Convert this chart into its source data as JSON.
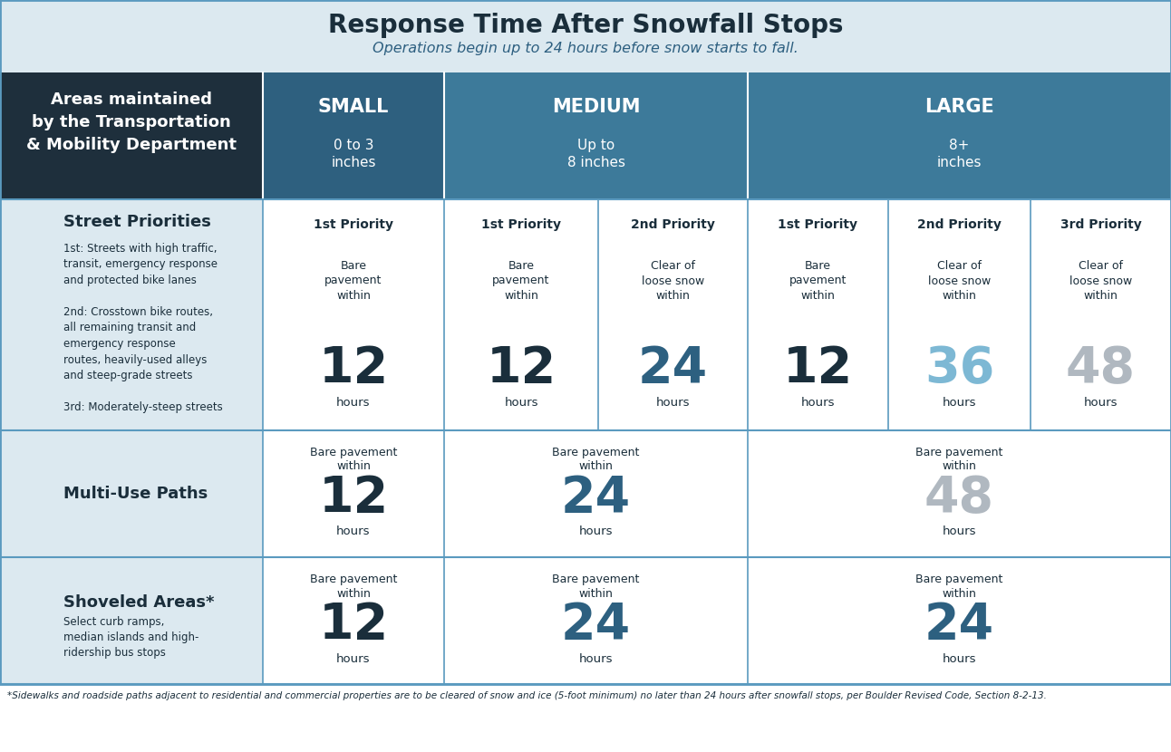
{
  "title": "Response Time After Snowfall Stops",
  "subtitle": "Operations begin up to 24 hours before snow starts to fall.",
  "header_bg_light": "#dce9f0",
  "col0_bg_dark": "#1e2f3c",
  "col0_bg_light": "#dce9f0",
  "teal_small": "#2e607f",
  "teal_medium": "#3d7a9a",
  "teal_large": "#3d7a9a",
  "row_bg_white": "#ffffff",
  "border_color": "#5a9abf",
  "title_color": "#1a2e3b",
  "subtitle_color": "#2d5f80",
  "dark_navy": "#1a2e3b",
  "teal_dark": "#2d6080",
  "light_blue": "#7db8d4",
  "gray_num": "#b0b8c0",
  "hours_color": "#1a2e3b",
  "footnote": "*Sidewalks and roadside paths adjacent to residential and commercial properties are to be cleared of snow and ice (5-foot minimum) no later than 24 hours after snowfall stops, per Boulder Revised Code, Section 8-2-13."
}
